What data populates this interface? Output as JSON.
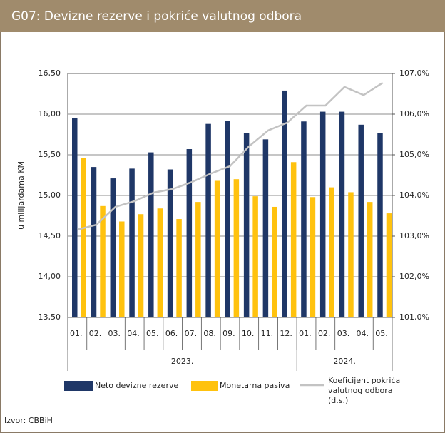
{
  "chart_data": {
    "type": "bar_line",
    "title": "G07:  Devizne rezerve i pokriće valutnog odbora",
    "y_label": "u milijardama KM",
    "source": "Izvor: CBBiH",
    "categories": [
      "01.",
      "02.",
      "03.",
      "04.",
      "05.",
      "06.",
      "07.",
      "08.",
      "09.",
      "10.",
      "11.",
      "12.",
      "01.",
      "02.",
      "03.",
      "04.",
      "05."
    ],
    "groups": [
      {
        "label": "2023.",
        "count": 12
      },
      {
        "label": "2024.",
        "count": 5
      }
    ],
    "series": [
      {
        "name": "Neto devizne rezerve",
        "color": "#1f3767",
        "type": "bar",
        "values": [
          15.95,
          15.35,
          15.21,
          15.33,
          15.53,
          15.32,
          15.57,
          15.88,
          15.92,
          15.77,
          15.69,
          16.29,
          15.91,
          16.03,
          16.03,
          15.87,
          15.77
        ]
      },
      {
        "name": "Monetarna pasiva",
        "color": "#ffc20e",
        "type": "bar",
        "values": [
          15.46,
          14.87,
          14.68,
          14.77,
          14.84,
          14.71,
          14.92,
          15.18,
          15.2,
          14.99,
          14.86,
          15.41,
          14.98,
          15.1,
          15.04,
          14.92,
          14.78
        ]
      },
      {
        "name": "Koeficijent pokrića valutnog odbora (d.s.)",
        "color": "#c3c3c3",
        "type": "line",
        "axis": "y2",
        "values": [
          103.16,
          103.28,
          103.72,
          103.86,
          104.07,
          104.16,
          104.33,
          104.54,
          104.72,
          105.21,
          105.6,
          105.79,
          106.21,
          106.21,
          106.67,
          106.47,
          106.77
        ]
      }
    ],
    "ylim": [
      13.5,
      16.5
    ],
    "yticks": [
      {
        "value": 13.5,
        "label": "13,50"
      },
      {
        "value": 14,
        "label": "14,00"
      },
      {
        "value": 14.5,
        "label": "14,50"
      },
      {
        "value": 15,
        "label": "15,00"
      },
      {
        "value": 15.5,
        "label": "15,50"
      },
      {
        "value": 16,
        "label": "16,00"
      },
      {
        "value": 16.5,
        "label": "16,50"
      }
    ],
    "y2lim": [
      101,
      107
    ],
    "y2ticks": [
      {
        "value": 101,
        "label": "101,0%"
      },
      {
        "value": 102,
        "label": "102,0%"
      },
      {
        "value": 103,
        "label": "103,0%"
      },
      {
        "value": 104,
        "label": "104,0%"
      },
      {
        "value": 105,
        "label": "105,0%"
      },
      {
        "value": 106,
        "label": "106,0%"
      },
      {
        "value": 107,
        "label": "107,0%"
      }
    ],
    "grid": true
  }
}
